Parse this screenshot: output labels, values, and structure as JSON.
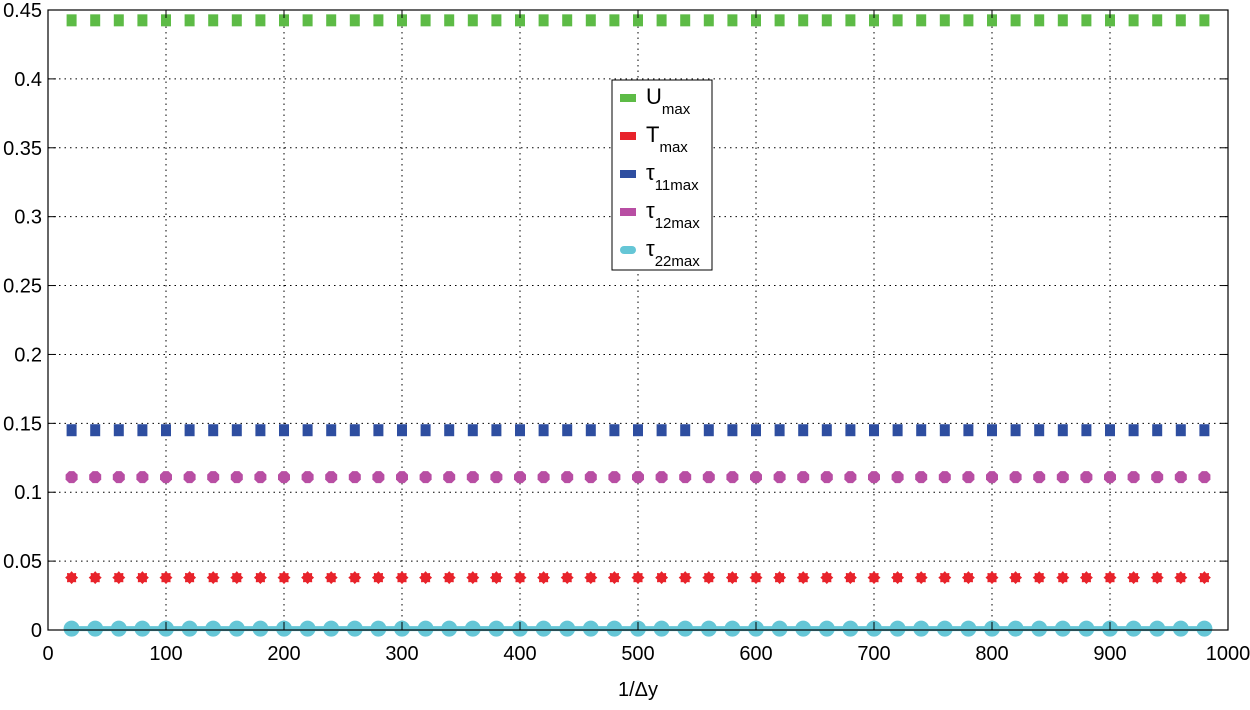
{
  "chart_data": {
    "type": "scatter",
    "title": "",
    "xlabel": "1/Δy",
    "ylabel": "",
    "xlim": [
      0,
      1000
    ],
    "ylim": [
      0,
      0.45
    ],
    "xticks": [
      "0",
      "100",
      "200",
      "300",
      "400",
      "500",
      "600",
      "700",
      "800",
      "900",
      "1000"
    ],
    "yticks": [
      "0",
      "0.05",
      "0.1",
      "0.15",
      "0.2",
      "0.25",
      "0.3",
      "0.35",
      "0.4",
      "0.45"
    ],
    "grid": true,
    "legend_position": "top-center",
    "x": [
      20,
      40,
      60,
      80,
      100,
      120,
      140,
      160,
      180,
      200,
      220,
      240,
      260,
      280,
      300,
      320,
      340,
      360,
      380,
      400,
      420,
      440,
      460,
      480,
      500,
      520,
      540,
      560,
      580,
      600,
      620,
      640,
      660,
      680,
      700,
      720,
      740,
      760,
      780,
      800,
      820,
      840,
      860,
      880,
      900,
      920,
      940,
      960,
      980
    ],
    "series": [
      {
        "name": "U",
        "sub": "max",
        "color": "#5dbb46",
        "marker": "square",
        "values": [
          0.4425,
          0.4425,
          0.4425,
          0.4425,
          0.4425,
          0.4425,
          0.4425,
          0.4425,
          0.4425,
          0.4425,
          0.4425,
          0.4425,
          0.4425,
          0.4425,
          0.4425,
          0.4425,
          0.4425,
          0.4425,
          0.4425,
          0.4425,
          0.4425,
          0.4425,
          0.4425,
          0.4425,
          0.4425,
          0.4425,
          0.4425,
          0.4425,
          0.4425,
          0.4425,
          0.4425,
          0.4425,
          0.4425,
          0.4425,
          0.4425,
          0.4425,
          0.4425,
          0.4425,
          0.4425,
          0.4425,
          0.4425,
          0.4425,
          0.4425,
          0.4425,
          0.4425,
          0.4425,
          0.4425,
          0.4425,
          0.4425
        ]
      },
      {
        "name": "T",
        "sub": "max",
        "color": "#e8232b",
        "marker": "star",
        "values": [
          0.038,
          0.038,
          0.038,
          0.038,
          0.038,
          0.038,
          0.038,
          0.038,
          0.038,
          0.038,
          0.038,
          0.038,
          0.038,
          0.038,
          0.038,
          0.038,
          0.038,
          0.038,
          0.038,
          0.038,
          0.038,
          0.038,
          0.038,
          0.038,
          0.038,
          0.038,
          0.038,
          0.038,
          0.038,
          0.038,
          0.038,
          0.038,
          0.038,
          0.038,
          0.038,
          0.038,
          0.038,
          0.038,
          0.038,
          0.038,
          0.038,
          0.038,
          0.038,
          0.038,
          0.038,
          0.038,
          0.038,
          0.038,
          0.038
        ]
      },
      {
        "name": "τ",
        "sub": "11max",
        "color": "#2e4ea0",
        "marker": "square",
        "values": [
          0.145,
          0.145,
          0.145,
          0.145,
          0.145,
          0.145,
          0.145,
          0.145,
          0.145,
          0.145,
          0.145,
          0.145,
          0.145,
          0.145,
          0.145,
          0.145,
          0.145,
          0.145,
          0.145,
          0.145,
          0.145,
          0.145,
          0.145,
          0.145,
          0.145,
          0.145,
          0.145,
          0.145,
          0.145,
          0.145,
          0.145,
          0.145,
          0.145,
          0.145,
          0.145,
          0.145,
          0.145,
          0.145,
          0.145,
          0.145,
          0.145,
          0.145,
          0.145,
          0.145,
          0.145,
          0.145,
          0.145,
          0.145,
          0.145
        ]
      },
      {
        "name": "τ",
        "sub": "12max",
        "color": "#b84ea3",
        "marker": "hexagon",
        "values": [
          0.111,
          0.111,
          0.111,
          0.111,
          0.111,
          0.111,
          0.111,
          0.111,
          0.111,
          0.111,
          0.111,
          0.111,
          0.111,
          0.111,
          0.111,
          0.111,
          0.111,
          0.111,
          0.111,
          0.111,
          0.111,
          0.111,
          0.111,
          0.111,
          0.111,
          0.111,
          0.111,
          0.111,
          0.111,
          0.111,
          0.111,
          0.111,
          0.111,
          0.111,
          0.111,
          0.111,
          0.111,
          0.111,
          0.111,
          0.111,
          0.111,
          0.111,
          0.111,
          0.111,
          0.111,
          0.111,
          0.111,
          0.111,
          0.111
        ]
      },
      {
        "name": "τ",
        "sub": "22max",
        "color": "#65c6d6",
        "marker": "circle-line",
        "values": [
          0.001,
          0.001,
          0.001,
          0.001,
          0.001,
          0.001,
          0.001,
          0.001,
          0.001,
          0.001,
          0.001,
          0.001,
          0.001,
          0.001,
          0.001,
          0.001,
          0.001,
          0.001,
          0.001,
          0.001,
          0.001,
          0.001,
          0.001,
          0.001,
          0.001,
          0.001,
          0.001,
          0.001,
          0.001,
          0.001,
          0.001,
          0.001,
          0.001,
          0.001,
          0.001,
          0.001,
          0.001,
          0.001,
          0.001,
          0.001,
          0.001,
          0.001,
          0.001,
          0.001,
          0.001,
          0.001,
          0.001,
          0.001,
          0.001
        ]
      }
    ]
  }
}
